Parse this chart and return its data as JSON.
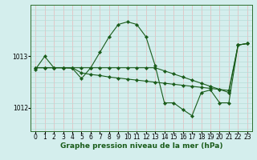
{
  "title": "Graphe pression niveau de la mer (hPa)",
  "background_color": "#d4eeed",
  "grid_color_major": "#f0c0c0",
  "grid_color_minor": "#c8e8e4",
  "line_color": "#1a5c1a",
  "xlim": [
    -0.5,
    23.5
  ],
  "ylim": [
    1011.55,
    1014.0
  ],
  "yticks": [
    1012,
    1013
  ],
  "xticks": [
    0,
    1,
    2,
    3,
    4,
    5,
    6,
    7,
    8,
    9,
    10,
    11,
    12,
    13,
    14,
    15,
    16,
    17,
    18,
    19,
    20,
    21,
    22,
    23
  ],
  "s1": [
    1012.75,
    1013.0,
    1012.78,
    1012.78,
    1012.77,
    1012.57,
    1012.78,
    1013.08,
    1013.38,
    1013.62,
    1013.67,
    1013.62,
    1013.38,
    1012.82,
    1012.1,
    1012.1,
    1011.97,
    1011.85,
    1012.3,
    1012.35,
    1012.1,
    1012.1,
    1013.22,
    1013.25
  ],
  "s2": [
    1012.78,
    1012.78,
    1012.78,
    1012.78,
    1012.78,
    1012.78,
    1012.78,
    1012.78,
    1012.78,
    1012.78,
    1012.78,
    1012.78,
    1012.78,
    1012.78,
    1012.72,
    1012.66,
    1012.6,
    1012.54,
    1012.48,
    1012.42,
    1012.36,
    1012.3,
    1013.22,
    1013.25
  ],
  "s3": [
    1012.78,
    1012.78,
    1012.78,
    1012.78,
    1012.78,
    1012.68,
    1012.65,
    1012.63,
    1012.6,
    1012.58,
    1012.56,
    1012.54,
    1012.52,
    1012.5,
    1012.48,
    1012.46,
    1012.44,
    1012.42,
    1012.4,
    1012.38,
    1012.36,
    1012.34,
    1013.22,
    1013.25
  ],
  "tick_fontsize": 5.5,
  "title_fontsize": 6.5
}
